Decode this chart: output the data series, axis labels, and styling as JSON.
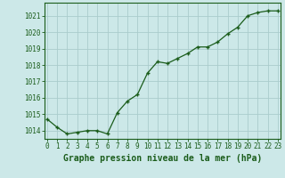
{
  "x": [
    0,
    1,
    2,
    3,
    4,
    5,
    6,
    7,
    8,
    9,
    10,
    11,
    12,
    13,
    14,
    15,
    16,
    17,
    18,
    19,
    20,
    21,
    22,
    23
  ],
  "y": [
    1014.7,
    1014.2,
    1013.8,
    1013.9,
    1014.0,
    1014.0,
    1013.8,
    1015.1,
    1015.8,
    1016.2,
    1017.5,
    1018.2,
    1018.1,
    1018.4,
    1018.7,
    1019.1,
    1019.1,
    1019.4,
    1019.9,
    1020.3,
    1021.0,
    1021.2,
    1021.3,
    1021.3
  ],
  "line_color": "#1a5c1a",
  "marker": "P",
  "marker_size": 3.5,
  "bg_color": "#cce8e8",
  "grid_color": "#aacccc",
  "ylim_min": 1013.5,
  "ylim_max": 1021.8,
  "xlim_min": -0.3,
  "xlim_max": 23.3,
  "yticks": [
    1014,
    1015,
    1016,
    1017,
    1018,
    1019,
    1020,
    1021
  ],
  "xticks": [
    0,
    1,
    2,
    3,
    4,
    5,
    6,
    7,
    8,
    9,
    10,
    11,
    12,
    13,
    14,
    15,
    16,
    17,
    18,
    19,
    20,
    21,
    22,
    23
  ],
  "xlabel": "Graphe pression niveau de la mer (hPa)",
  "xlabel_color": "#1a5c1a",
  "tick_label_color": "#1a5c1a",
  "spine_color": "#1a5c1a",
  "ylabel_fontsize": 6.5,
  "xlabel_fontsize": 7,
  "tick_fontsize": 5.5,
  "linewidth": 0.9
}
